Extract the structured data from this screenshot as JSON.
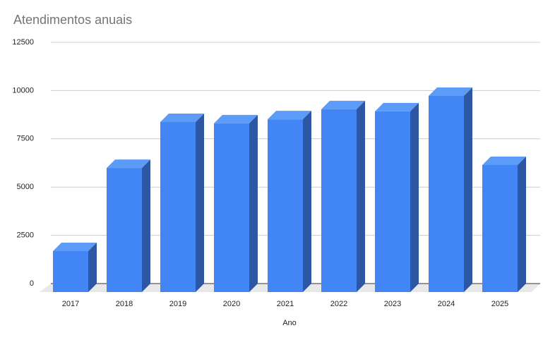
{
  "chart_data": {
    "type": "bar3d",
    "title": "Atendimentos anuais",
    "x_label": "Ano",
    "categories": [
      "2017",
      "2018",
      "2019",
      "2020",
      "2021",
      "2022",
      "2023",
      "2024",
      "2025"
    ],
    "values": [
      2120,
      6430,
      8810,
      8740,
      8950,
      9470,
      9360,
      10160,
      6580
    ],
    "color": "#4285f4",
    "ylim": [
      0,
      12500
    ],
    "yticks": [
      0,
      2500,
      5000,
      7500,
      10000,
      12500
    ],
    "grid": true
  }
}
